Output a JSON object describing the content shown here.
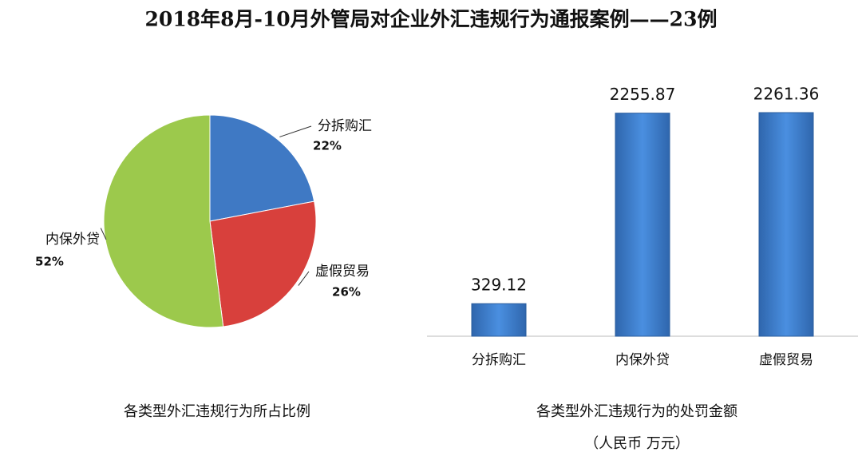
{
  "title": "2018年8月-10月外管局对企业外汇违规行为通报案例——23例",
  "chart_data": [
    {
      "type": "pie",
      "title": "各类型外汇违规行为所占比例",
      "categories": [
        "分拆购汇",
        "虚假贸易",
        "内保外贷"
      ],
      "values": [
        22,
        26,
        52
      ],
      "value_labels": [
        "22%",
        "26%",
        "52%"
      ],
      "colors": [
        "#3f79c4",
        "#d8403c",
        "#9cc94c"
      ]
    },
    {
      "type": "bar",
      "title": "各类型外汇违规行为的处罚金额",
      "subtitle": "（人民币  万元）",
      "categories": [
        "分拆购汇",
        "内保外贷",
        "虚假贸易"
      ],
      "values": [
        329.12,
        2255.87,
        2261.36
      ],
      "color": "#3d7fd0"
    }
  ]
}
